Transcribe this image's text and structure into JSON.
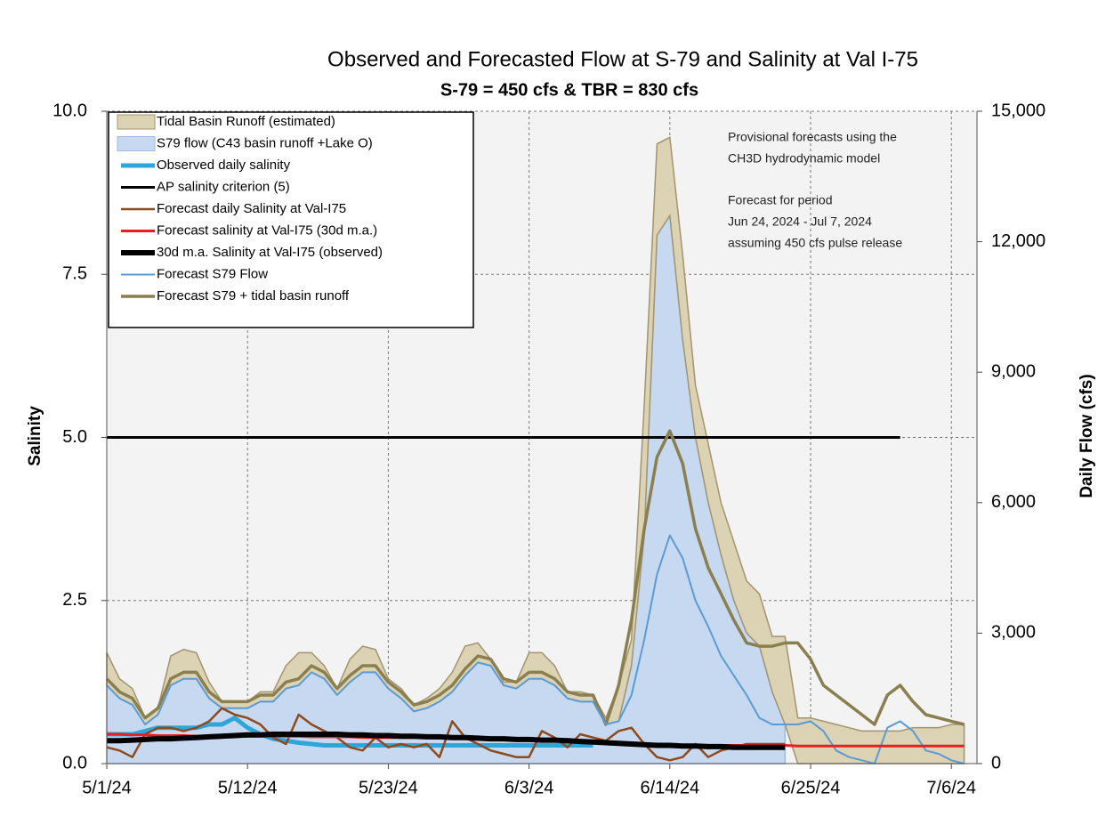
{
  "chart_data": {
    "type": "line",
    "title": "Observed and Forecasted Flow at S-79 and Salinity at Val I-75",
    "subtitle": "S-79 = 450 cfs & TBR =  830 cfs",
    "y_label": "Salinity",
    "y2_label": "Daily Flow (cfs)",
    "annotations": [
      "Provisional forecasts using the",
      "CH3D hydrodynamic model",
      "Forecast for period",
      "Jun 24, 2024 - Jul 7, 2024",
      "assuming 450 cfs pulse release"
    ],
    "grid": true,
    "legend": "upper left",
    "x": [
      "5/1/24",
      "5/2/24",
      "5/3/24",
      "5/4/24",
      "5/5/24",
      "5/6/24",
      "5/7/24",
      "5/8/24",
      "5/9/24",
      "5/10/24",
      "5/11/24",
      "5/12/24",
      "5/13/24",
      "5/14/24",
      "5/15/24",
      "5/16/24",
      "5/17/24",
      "5/18/24",
      "5/19/24",
      "5/20/24",
      "5/21/24",
      "5/22/24",
      "5/23/24",
      "5/24/24",
      "5/25/24",
      "5/26/24",
      "5/27/24",
      "5/28/24",
      "5/29/24",
      "5/30/24",
      "5/31/24",
      "6/1/24",
      "6/2/24",
      "6/3/24",
      "6/4/24",
      "6/5/24",
      "6/6/24",
      "6/7/24",
      "6/8/24",
      "6/9/24",
      "6/10/24",
      "6/11/24",
      "6/12/24",
      "6/13/24",
      "6/14/24",
      "6/15/24",
      "6/16/24",
      "6/17/24",
      "6/18/24",
      "6/19/24",
      "6/20/24",
      "6/21/24",
      "6/22/24",
      "6/23/24",
      "6/24/24",
      "6/25/24",
      "6/26/24",
      "6/27/24",
      "6/28/24",
      "6/29/24",
      "6/30/24",
      "7/1/24",
      "7/2/24",
      "7/3/24",
      "7/4/24",
      "7/5/24",
      "7/6/24",
      "7/7/24"
    ],
    "xlim": [
      "5/1/24",
      "7/8/24"
    ],
    "xticks": [
      "5/1/24",
      "5/12/24",
      "5/23/24",
      "6/3/24",
      "6/14/24",
      "6/25/24",
      "7/6/24"
    ],
    "ylim": [
      0,
      10
    ],
    "yticks": [
      {
        "value": 0,
        "label": "0.0"
      },
      {
        "value": 2.5,
        "label": "2.5"
      },
      {
        "value": 5,
        "label": "5.0"
      },
      {
        "value": 7.5,
        "label": "7.5"
      },
      {
        "value": 10,
        "label": "10.0"
      }
    ],
    "y2lim": [
      0,
      15000
    ],
    "y2ticks": [
      0,
      {
        "value": 3000,
        "label": "3,000"
      },
      {
        "value": 6000,
        "label": "6,000"
      },
      {
        "value": 9000,
        "label": "9,000"
      },
      {
        "value": 12000,
        "label": "12,000"
      },
      {
        "value": 15000,
        "label": "15,000"
      }
    ],
    "series": [
      {
        "name": "Tidal Basin Runoff (estimated)",
        "style": "area",
        "stacked": true,
        "axis": "y2",
        "color": "#dcd2b4",
        "edge": "#a39470",
        "values": [
          750,
          450,
          375,
          150,
          150,
          675,
          675,
          600,
          375,
          150,
          150,
          150,
          225,
          225,
          525,
          750,
          450,
          300,
          150,
          525,
          600,
          525,
          225,
          225,
          150,
          225,
          300,
          450,
          675,
          450,
          150,
          75,
          150,
          600,
          600,
          450,
          150,
          225,
          150,
          150,
          825,
          600,
          3000,
          2100,
          1800,
          1950,
          1200,
          1350,
          1200,
          1350,
          1200,
          1200,
          1275,
          2025,
          1050,
          1050,
          975,
          900,
          825,
          750,
          750,
          750,
          750,
          825,
          825,
          825,
          900,
          900
        ]
      },
      {
        "name": "S79 flow (C43 basin runoff +Lake O)",
        "style": "area",
        "stacked": true,
        "axis": "y2",
        "color": "#c6d9f1",
        "edge": "#9fbbe0",
        "values": [
          1800,
          1500,
          1350,
          900,
          1125,
          1800,
          1950,
          1950,
          1500,
          1275,
          1275,
          1275,
          1425,
          1425,
          1725,
          1800,
          2100,
          1950,
          1575,
          1875,
          2100,
          2100,
          1725,
          1500,
          1200,
          1275,
          1425,
          1650,
          2025,
          2325,
          2250,
          1800,
          1725,
          1950,
          1950,
          1800,
          1500,
          1425,
          1425,
          900,
          975,
          2250,
          5250,
          12150,
          12600,
          9750,
          7500,
          6000,
          4800,
          3750,
          3000,
          2700,
          1650,
          900,
          null,
          null,
          null,
          null,
          null,
          null,
          null,
          null,
          null,
          null,
          null,
          null,
          null,
          null
        ]
      },
      {
        "name": "Observed daily salinity",
        "style": "line",
        "color": "#2ea6d8",
        "values": [
          0.45,
          0.45,
          0.45,
          0.5,
          0.55,
          0.55,
          0.55,
          0.55,
          0.6,
          0.6,
          0.7,
          0.55,
          0.45,
          0.38,
          0.35,
          0.32,
          0.3,
          0.28,
          0.28,
          0.28,
          0.28,
          0.28,
          0.28,
          0.28,
          0.28,
          0.28,
          0.28,
          0.28,
          0.28,
          0.28,
          0.28,
          0.28,
          0.28,
          0.28,
          0.28,
          0.28,
          0.28,
          0.28,
          0.28,
          null,
          null,
          null,
          null,
          null,
          null,
          null,
          null,
          null,
          null,
          null,
          null,
          null,
          null,
          null,
          null,
          null,
          null,
          null,
          null,
          null,
          null,
          null,
          null,
          null,
          null,
          null,
          null,
          null
        ]
      },
      {
        "name": "AP salinity criterion (5)",
        "style": "line",
        "color": "#000000",
        "values": [
          5,
          5,
          5,
          5,
          5,
          5,
          5,
          5,
          5,
          5,
          5,
          5,
          5,
          5,
          5,
          5,
          5,
          5,
          5,
          5,
          5,
          5,
          5,
          5,
          5,
          5,
          5,
          5,
          5,
          5,
          5,
          5,
          5,
          5,
          5,
          5,
          5,
          5,
          5,
          5,
          5,
          5,
          5,
          5,
          5,
          5,
          5,
          5,
          5,
          5,
          5,
          5,
          5,
          5,
          5,
          5,
          5,
          5,
          5,
          5,
          5,
          5,
          5,
          null,
          null,
          null,
          null,
          null
        ]
      },
      {
        "name": "Forecast daily Salinity at Val-I75",
        "style": "line",
        "color": "#8e4a1c",
        "values": [
          0.25,
          0.2,
          0.1,
          0.45,
          0.55,
          0.55,
          0.5,
          0.55,
          0.65,
          0.85,
          0.75,
          0.7,
          0.6,
          0.4,
          0.3,
          0.75,
          0.6,
          0.5,
          0.4,
          0.25,
          0.2,
          0.4,
          0.25,
          0.3,
          0.25,
          0.3,
          0.1,
          0.65,
          0.4,
          0.3,
          0.2,
          0.15,
          0.1,
          0.1,
          0.5,
          0.4,
          0.25,
          0.45,
          0.4,
          0.35,
          0.5,
          0.55,
          0.3,
          0.1,
          0.05,
          0.1,
          0.3,
          0.1,
          0.2,
          0.25,
          0.3,
          0.3,
          0.3,
          0.3,
          null,
          null,
          null,
          null,
          null,
          null,
          null,
          null,
          null,
          null,
          null,
          null,
          null,
          null
        ]
      },
      {
        "name": "Forecast salinity at Val-I75 (30d m.a.)",
        "style": "line",
        "color": "#ee1c1c",
        "values": [
          0.45,
          0.45,
          0.44,
          0.44,
          0.43,
          0.43,
          0.43,
          0.42,
          0.42,
          0.42,
          0.42,
          0.42,
          0.42,
          0.42,
          0.42,
          0.42,
          0.41,
          0.41,
          0.41,
          0.41,
          0.4,
          0.4,
          0.4,
          0.4,
          0.4,
          0.4,
          0.39,
          0.39,
          0.39,
          0.38,
          0.38,
          0.37,
          0.37,
          0.36,
          0.36,
          0.35,
          0.35,
          0.34,
          0.33,
          0.32,
          0.32,
          0.31,
          0.3,
          0.3,
          0.29,
          0.28,
          0.28,
          0.28,
          0.28,
          0.28,
          0.28,
          0.28,
          0.28,
          0.28,
          0.27,
          0.27,
          0.27,
          0.27,
          0.27,
          0.27,
          0.27,
          0.27,
          0.27,
          0.27,
          0.27,
          0.27,
          0.27,
          0.27
        ]
      },
      {
        "name": "30d m.a. Salinity at Val-I75 (observed)",
        "style": "line",
        "color": "#000000",
        "values": [
          0.35,
          0.35,
          0.36,
          0.37,
          0.38,
          0.38,
          0.39,
          0.4,
          0.41,
          0.42,
          0.43,
          0.44,
          0.44,
          0.45,
          0.45,
          0.45,
          0.45,
          0.45,
          0.45,
          0.44,
          0.44,
          0.43,
          0.43,
          0.42,
          0.42,
          0.41,
          0.41,
          0.4,
          0.4,
          0.39,
          0.38,
          0.38,
          0.37,
          0.37,
          0.36,
          0.36,
          0.35,
          0.34,
          0.33,
          0.32,
          0.31,
          0.3,
          0.29,
          0.28,
          0.28,
          0.27,
          0.27,
          0.26,
          0.26,
          0.25,
          0.25,
          0.25,
          0.25,
          0.25,
          null,
          null,
          null,
          null,
          null,
          null,
          null,
          null,
          null,
          null,
          null,
          null,
          null,
          null
        ]
      },
      {
        "name": "Forecast S79 Flow",
        "style": "line",
        "axis": "y2",
        "color": "#5b9bd5",
        "values": [
          1800,
          1500,
          1350,
          900,
          1125,
          1800,
          1950,
          1950,
          1500,
          1275,
          1275,
          1275,
          1425,
          1425,
          1725,
          1800,
          2100,
          1950,
          1575,
          1875,
          2100,
          2100,
          1725,
          1500,
          1200,
          1275,
          1425,
          1650,
          2025,
          2325,
          2250,
          1800,
          1725,
          1950,
          1950,
          1800,
          1500,
          1425,
          1425,
          900,
          975,
          1575,
          2850,
          4350,
          5250,
          4725,
          3750,
          3150,
          2475,
          2025,
          1575,
          1050,
          900,
          900,
          900,
          975,
          750,
          300,
          150,
          75,
          0,
          825,
          975,
          750,
          300,
          225,
          75,
          0
        ]
      },
      {
        "name": "Forecast S79 + tidal basin runoff",
        "style": "line",
        "axis": "y2",
        "color": "#8c7f4f",
        "values": [
          1950,
          1650,
          1500,
          1050,
          1275,
          1950,
          2100,
          2100,
          1650,
          1425,
          1425,
          1425,
          1575,
          1575,
          1875,
          1950,
          2250,
          2100,
          1725,
          2025,
          2250,
          2250,
          1875,
          1650,
          1350,
          1425,
          1575,
          1800,
          2175,
          2475,
          2400,
          1950,
          1875,
          2100,
          2100,
          1950,
          1650,
          1575,
          1575,
          900,
          1800,
          3300,
          5400,
          7050,
          7650,
          6900,
          5400,
          4500,
          3900,
          3300,
          2775,
          2700,
          2700,
          2775,
          2775,
          2400,
          1800,
          1575,
          1350,
          1125,
          900,
          1575,
          1800,
          1425,
          1125,
          1050,
          975,
          900
        ]
      }
    ]
  }
}
